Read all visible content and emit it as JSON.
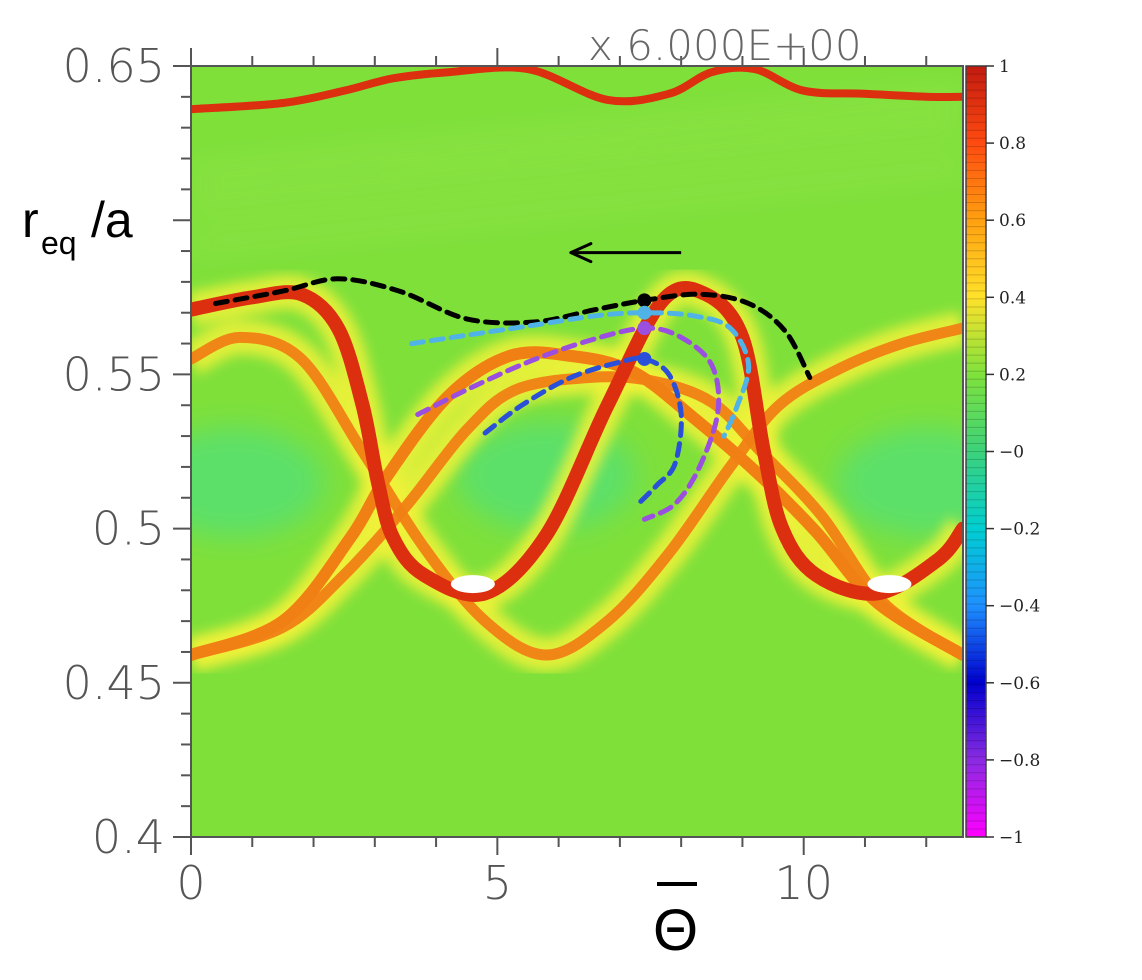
{
  "chart_data": {
    "type": "heatmap",
    "scale_label": "x 6.000E+00",
    "xlabel": "Θ",
    "ylabel_main": "r",
    "ylabel_sub": "eq",
    "ylabel_tail": "/a",
    "xlim": [
      0,
      12.6
    ],
    "ylim": [
      0.4,
      0.65
    ],
    "x_ticks": [
      {
        "value": 0,
        "label": "0"
      },
      {
        "value": 5,
        "label": "5"
      },
      {
        "value": 10,
        "label": "10"
      }
    ],
    "y_ticks": [
      {
        "value": 0.4,
        "label": "0.4"
      },
      {
        "value": 0.45,
        "label": "0.45"
      },
      {
        "value": 0.5,
        "label": "0.5"
      },
      {
        "value": 0.55,
        "label": "0.55"
      },
      {
        "value": 0.65,
        "label": "0.65"
      }
    ],
    "colorbar": {
      "range": [
        -1,
        1
      ],
      "ticks": [
        {
          "value": 1,
          "label": "1"
        },
        {
          "value": 0.8,
          "label": "0.8"
        },
        {
          "value": 0.6,
          "label": "0.6"
        },
        {
          "value": 0.4,
          "label": "0.4"
        },
        {
          "value": 0.2,
          "label": "0.2"
        },
        {
          "value": 0,
          "label": "−0"
        },
        {
          "value": -0.2,
          "label": "−0.2"
        },
        {
          "value": -0.4,
          "label": "−0.4"
        },
        {
          "value": -0.6,
          "label": "−0.6"
        },
        {
          "value": -0.8,
          "label": "−0.8"
        },
        {
          "value": -1,
          "label": "−1"
        }
      ],
      "colors": [
        "#ff00ff",
        "#8a2be2",
        "#0000cd",
        "#1e90ff",
        "#00ced1",
        "#3cd27a",
        "#7fe23c",
        "#ffe12a",
        "#ffa010",
        "#ff4a10",
        "#c21a10"
      ]
    },
    "colors": {
      "background_field": "#7fe03a",
      "separatrix": "#dc2f10",
      "band": "#f07f14",
      "glow": "#f2f23a"
    },
    "separatrix_upper": [
      [
        0,
        0.571
      ],
      [
        1,
        0.575
      ],
      [
        1.8,
        0.576
      ],
      [
        2.4,
        0.565
      ],
      [
        2.8,
        0.54
      ],
      [
        3.05,
        0.515
      ],
      [
        3.3,
        0.497
      ],
      [
        3.8,
        0.485
      ],
      [
        4.8,
        0.479
      ],
      [
        5.8,
        0.498
      ],
      [
        6.8,
        0.54
      ],
      [
        7.7,
        0.574
      ],
      [
        8.4,
        0.576
      ],
      [
        9.0,
        0.562
      ],
      [
        9.35,
        0.525
      ],
      [
        9.65,
        0.5
      ],
      [
        10.2,
        0.485
      ],
      [
        11.2,
        0.479
      ],
      [
        12.2,
        0.49
      ],
      [
        12.6,
        0.5
      ]
    ],
    "separatrix_lower": [
      [
        0,
        0.459
      ],
      [
        1.5,
        0.47
      ],
      [
        2.6,
        0.497
      ],
      [
        3.2,
        0.517
      ],
      [
        4.2,
        0.543
      ],
      [
        5.2,
        0.556
      ],
      [
        6.2,
        0.556
      ],
      [
        7.2,
        0.551
      ],
      [
        8.2,
        0.536
      ],
      [
        9.3,
        0.517
      ],
      [
        10.2,
        0.499
      ],
      [
        11.2,
        0.476
      ],
      [
        12.6,
        0.459
      ]
    ],
    "band_a": [
      [
        0,
        0.555
      ],
      [
        0.8,
        0.562
      ],
      [
        1.8,
        0.555
      ],
      [
        2.8,
        0.525
      ],
      [
        3.8,
        0.494
      ],
      [
        4.8,
        0.47
      ],
      [
        5.8,
        0.459
      ],
      [
        6.8,
        0.47
      ],
      [
        7.8,
        0.492
      ],
      [
        8.8,
        0.52
      ],
      [
        9.6,
        0.54
      ],
      [
        10.6,
        0.552
      ],
      [
        11.6,
        0.56
      ],
      [
        12.6,
        0.565
      ]
    ],
    "band_b": [
      [
        0,
        0.459
      ],
      [
        1.5,
        0.468
      ],
      [
        2.5,
        0.485
      ],
      [
        3.5,
        0.507
      ],
      [
        4.5,
        0.532
      ],
      [
        5.3,
        0.545
      ],
      [
        6.5,
        0.549
      ],
      [
        7.5,
        0.548
      ],
      [
        8.5,
        0.541
      ],
      [
        9.3,
        0.525
      ],
      [
        10.3,
        0.504
      ],
      [
        11.3,
        0.476
      ],
      [
        12.6,
        0.459
      ]
    ],
    "top_contour": [
      [
        0,
        0.636
      ],
      [
        1.5,
        0.638
      ],
      [
        2.5,
        0.642
      ],
      [
        3.3,
        0.646
      ],
      [
        4.2,
        0.648
      ],
      [
        5.5,
        0.649
      ],
      [
        6.8,
        0.639
      ],
      [
        7.8,
        0.641
      ],
      [
        8.5,
        0.648
      ],
      [
        9.2,
        0.649
      ],
      [
        10,
        0.642
      ],
      [
        11,
        0.641
      ],
      [
        12,
        0.64
      ],
      [
        12.6,
        0.64
      ]
    ],
    "trajectory_black": [
      [
        0.4,
        0.573
      ],
      [
        1.5,
        0.577
      ],
      [
        2.4,
        0.581
      ],
      [
        3.4,
        0.577
      ],
      [
        4.5,
        0.568
      ],
      [
        5.6,
        0.567
      ],
      [
        6.6,
        0.571
      ],
      [
        7.4,
        0.574
      ],
      [
        8.3,
        0.576
      ],
      [
        9.1,
        0.573
      ],
      [
        9.7,
        0.564
      ],
      [
        10.1,
        0.549
      ]
    ],
    "trajectory_cyan": [
      [
        3.6,
        0.56
      ],
      [
        4.6,
        0.563
      ],
      [
        5.6,
        0.566
      ],
      [
        6.6,
        0.569
      ],
      [
        7.4,
        0.57
      ],
      [
        8.2,
        0.569
      ],
      [
        8.8,
        0.565
      ],
      [
        9.1,
        0.553
      ],
      [
        8.9,
        0.539
      ],
      [
        8.7,
        0.53
      ]
    ],
    "trajectory_purple": [
      [
        3.7,
        0.537
      ],
      [
        4.5,
        0.545
      ],
      [
        5.5,
        0.554
      ],
      [
        6.5,
        0.561
      ],
      [
        7.4,
        0.565
      ],
      [
        8.0,
        0.562
      ],
      [
        8.5,
        0.553
      ],
      [
        8.6,
        0.538
      ],
      [
        8.3,
        0.52
      ],
      [
        7.9,
        0.508
      ],
      [
        7.4,
        0.503
      ]
    ],
    "trajectory_blue": [
      [
        4.8,
        0.531
      ],
      [
        5.4,
        0.54
      ],
      [
        6.2,
        0.549
      ],
      [
        7.0,
        0.554
      ],
      [
        7.4,
        0.555
      ],
      [
        7.8,
        0.55
      ],
      [
        8.0,
        0.537
      ],
      [
        7.9,
        0.521
      ],
      [
        7.6,
        0.514
      ],
      [
        7.3,
        0.508
      ]
    ],
    "markers": [
      {
        "x": 7.4,
        "y": 0.574,
        "color": "#000000"
      },
      {
        "x": 7.4,
        "y": 0.57,
        "color": "#4fb3e8"
      },
      {
        "x": 7.4,
        "y": 0.565,
        "color": "#9a4fe0"
      },
      {
        "x": 7.4,
        "y": 0.555,
        "color": "#2a4fd8"
      }
    ],
    "trajectory_colors": {
      "black": "#000000",
      "cyan": "#4fb3e8",
      "purple": "#9a4fe0",
      "blue": "#2a4fd8"
    },
    "arrow": {
      "from": [
        8.0,
        0.5895
      ],
      "to": [
        6.2,
        0.5895
      ],
      "color": "#000000"
    }
  }
}
